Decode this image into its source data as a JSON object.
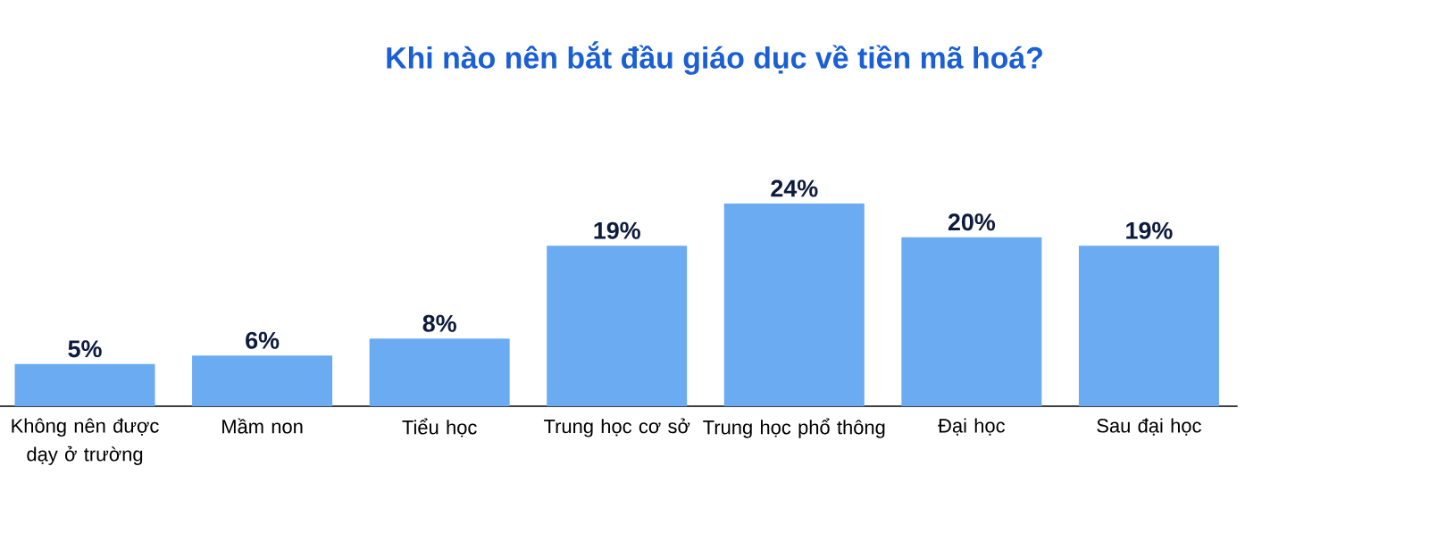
{
  "chart_data": {
    "type": "bar",
    "title": "Khi nào nên bắt đầu giáo dục về tiền mã hoá?",
    "categories": [
      "Không nên được dạy ở trường",
      "Mầm non",
      "Tiểu học",
      "Trung học cơ sở",
      "Trung học phổ thông",
      "Đại học",
      "Sau đại học"
    ],
    "values": [
      5,
      6,
      8,
      19,
      24,
      20,
      19
    ],
    "value_labels": [
      "5%",
      "6%",
      "8%",
      "19%",
      "24%",
      "20%",
      "19%"
    ],
    "color": "#6aabf2"
  }
}
